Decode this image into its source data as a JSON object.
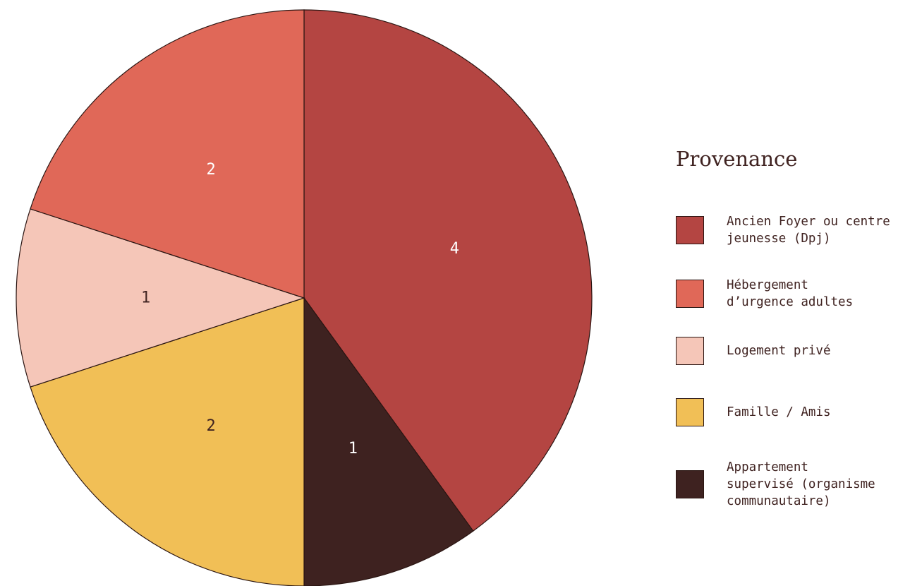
{
  "chart_data": {
    "type": "pie",
    "title": "",
    "legend_title": "Provenance",
    "legend_position": "right",
    "start_angle_deg": 0,
    "direction": "clockwise",
    "slices": [
      {
        "label": "Ancien Foyer ou centre jeunesse (Dpj)",
        "value": 4,
        "color": "#b44542",
        "text_color": "#ffffff"
      },
      {
        "label": "Appartement supervisé (organisme communautaire)",
        "value": 1,
        "color": "#3e2220",
        "text_color": "#ffffff"
      },
      {
        "label": "Famille / Amis",
        "value": 2,
        "color": "#f1bf56",
        "text_color": "#3e2220"
      },
      {
        "label": "Logement privé",
        "value": 1,
        "color": "#f5c6b8",
        "text_color": "#3e2220"
      },
      {
        "label": "Hébergement d’urgence adultes",
        "value": 2,
        "color": "#e06858",
        "text_color": "#ffffff"
      }
    ]
  },
  "legend": {
    "title": "Provenance",
    "items": [
      {
        "label": "Ancien Foyer ou centre\njeunesse (Dpj)",
        "color": "#b44542"
      },
      {
        "label": "Hébergement\nd’urgence adultes",
        "color": "#e06858"
      },
      {
        "label": "Logement privé",
        "color": "#f5c6b8"
      },
      {
        "label": "Famille / Amis",
        "color": "#f1bf56"
      },
      {
        "label": "Appartement\nsupervisé (organisme\ncommunautaire)",
        "color": "#3e2220"
      }
    ]
  }
}
